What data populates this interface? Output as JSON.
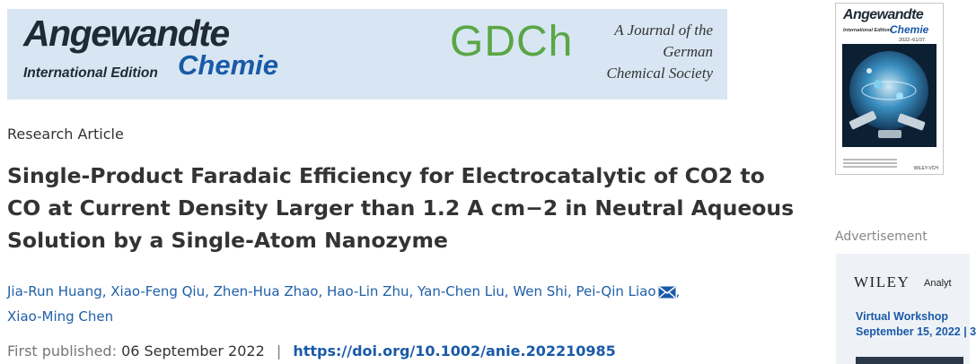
{
  "banner": {
    "brand_main": "Angewandte",
    "brand_edition": "International Edition",
    "brand_sub": "Chemie",
    "society_logo": "GDCh",
    "society_line1": "A Journal of the",
    "society_line2": "German",
    "society_line3": "Chemical Society"
  },
  "cover": {
    "title_main": "Angewandte",
    "title_sub": "Chemie",
    "edition": "International Edition",
    "volume": "2022–61/37",
    "publisher": "WILEY-VCH"
  },
  "article": {
    "type": "Research Article",
    "title": "Single-Product Faradaic Efficiency for Electrocatalytic of CO2 to CO at Current Density Larger than 1.2 A cm−2 in Neutral Aqueous Solution by a Single-Atom Nanozyme",
    "authors": [
      "Jia-Run Huang",
      "Xiao-Feng Qiu",
      "Zhen-Hua Zhao",
      "Hao-Lin Zhu",
      "Yan-Chen Liu",
      "Wen Shi",
      "Pei-Qin Liao",
      "Xiao-Ming Chen"
    ],
    "published_label": "First published:",
    "published_date": "06 September 2022",
    "separator": "|",
    "doi": "https://doi.org/10.1002/anie.202210985"
  },
  "ad": {
    "label": "Advertisement",
    "brand": "WILEY",
    "brand_sub": "Analyt",
    "line1": "Virtual Workshop",
    "line2": "September 15, 2022 | 3"
  },
  "colors": {
    "banner_bg": "#d7e6f2",
    "link_blue": "#1a5aa8",
    "gdch_green": "#5aa646"
  }
}
